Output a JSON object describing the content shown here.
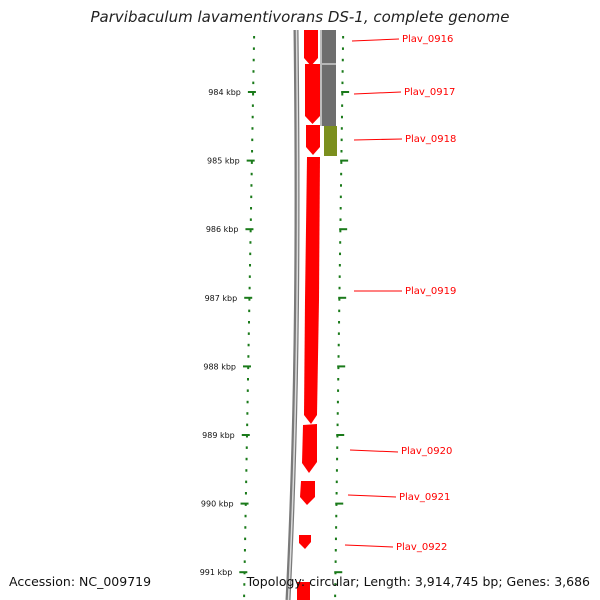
{
  "title": "Parvibaculum lavamentivorans DS-1, complete genome",
  "accession": "Accession: NC_009719",
  "topology": "Topology: circular; Length: 3,914,745 bp; Genes: 3,686",
  "colors": {
    "gene_fill": "#ff0000",
    "feature_gray": "#6e6e6e",
    "feature_olive": "#7b8f1e",
    "tick": "#1a7a1a",
    "backbone": "#808080",
    "label": "#ff0000"
  },
  "ruler": {
    "unit": "kbp",
    "ticks": [
      "984 kbp",
      "985 kbp",
      "986 kbp",
      "987 kbp",
      "988 kbp",
      "989 kbp",
      "990 kbp",
      "991 kbp"
    ]
  },
  "genes": [
    {
      "name": "Plav_0916"
    },
    {
      "name": "Plav_0917"
    },
    {
      "name": "Plav_0918"
    },
    {
      "name": "Plav_0919"
    },
    {
      "name": "Plav_0920"
    },
    {
      "name": "Plav_0921"
    },
    {
      "name": "Plav_0922"
    }
  ]
}
